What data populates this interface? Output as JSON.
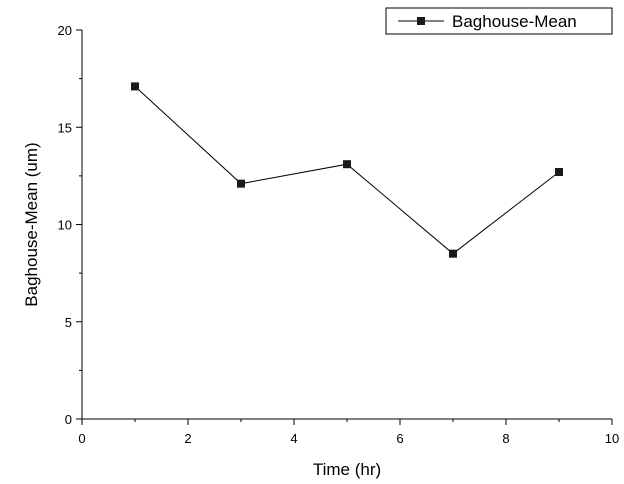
{
  "chart_data": {
    "type": "line",
    "xlabel": "Time (hr)",
    "ylabel": "Baghouse-Mean (um)",
    "xlim": [
      0,
      10
    ],
    "ylim": [
      0,
      20
    ],
    "xticks": [
      0,
      2,
      4,
      6,
      8,
      10
    ],
    "yticks": [
      0,
      5,
      10,
      15,
      20
    ],
    "grid": false,
    "legend_position": "top-right",
    "series": [
      {
        "name": "Baghouse-Mean",
        "marker": "square",
        "color": "#000000",
        "x": [
          1,
          3,
          5,
          7,
          9
        ],
        "y": [
          17.1,
          12.1,
          13.1,
          8.5,
          12.7
        ]
      }
    ]
  }
}
